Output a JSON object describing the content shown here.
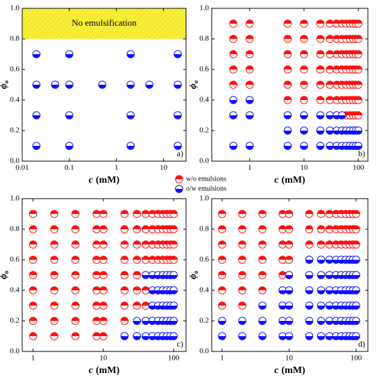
{
  "chart_data": [
    {
      "type": "scatter",
      "log_x": true,
      "xlim": [
        0.01,
        30
      ],
      "xticks": [
        0.01,
        0.1,
        1,
        10
      ],
      "ylim": [
        0,
        1
      ],
      "yticks": [
        {
          "value": 0,
          "label": "0.0"
        },
        0.2,
        0.4,
        0.6,
        0.8,
        {
          "value": 1,
          "label": "1.0"
        }
      ],
      "xlabel": "c",
      "xlabel_unit": "(mM)",
      "ylabel": "ϕ",
      "ylabel_sub": "o",
      "panel_label": "a)",
      "shaded_region": {
        "ymin": 0.8,
        "ymax": 1.0,
        "color": "#f7ef3a",
        "label": "No emulsification"
      },
      "series": [
        {
          "color": "#1010ff",
          "fill_half": "bottom",
          "x": [
            0.02,
            0.1,
            2,
            20,
            0.02,
            0.05,
            0.1,
            0.5,
            2,
            5,
            20,
            0.02,
            0.1,
            2,
            20,
            0.02,
            0.1,
            2,
            20
          ],
          "values": [
            0.7,
            0.7,
            0.7,
            0.7,
            0.5,
            0.5,
            0.5,
            0.5,
            0.5,
            0.5,
            0.5,
            0.3,
            0.3,
            0.3,
            0.3,
            0.1,
            0.1,
            0.1,
            0.1
          ]
        }
      ]
    },
    {
      "type": "scatter",
      "log_x": true,
      "xlim": [
        0.2,
        150
      ],
      "xticks": [
        1,
        10,
        100
      ],
      "ylim": [
        0,
        1
      ],
      "yticks": [
        {
          "value": 0,
          "label": "0.0"
        },
        0.2,
        0.4,
        0.6,
        0.8,
        {
          "value": 1,
          "label": "1.0"
        }
      ],
      "xlabel": "c",
      "xlabel_unit": "(mM)",
      "ylabel": "ϕ",
      "ylabel_sub": "o",
      "panel_label": "b)",
      "series": [
        {
          "name": "w/o emulsions",
          "color": "#ff1010",
          "fill_half": "top",
          "x": [
            0.5,
            1,
            5,
            10,
            20,
            30,
            40,
            50,
            60,
            70,
            80,
            90,
            100,
            0.5,
            1,
            5,
            10,
            20,
            30,
            40,
            50,
            60,
            70,
            80,
            90,
            100,
            0.5,
            1,
            5,
            10,
            20,
            30,
            40,
            50,
            60,
            70,
            80,
            90,
            100,
            0.5,
            1,
            5,
            10,
            20,
            30,
            40,
            50,
            60,
            70,
            80,
            90,
            100,
            0.5,
            1,
            5,
            10,
            20,
            30,
            40,
            50,
            60,
            70,
            80,
            90,
            100,
            5,
            10,
            20,
            30,
            40,
            50,
            60,
            70,
            80,
            90,
            100,
            60,
            70,
            80,
            90,
            100
          ],
          "values": [
            0.9,
            0.9,
            0.9,
            0.9,
            0.9,
            0.9,
            0.9,
            0.9,
            0.9,
            0.9,
            0.9,
            0.9,
            0.9,
            0.8,
            0.8,
            0.8,
            0.8,
            0.8,
            0.8,
            0.8,
            0.8,
            0.8,
            0.8,
            0.8,
            0.8,
            0.8,
            0.7,
            0.7,
            0.7,
            0.7,
            0.7,
            0.7,
            0.7,
            0.7,
            0.7,
            0.7,
            0.7,
            0.7,
            0.7,
            0.6,
            0.6,
            0.6,
            0.6,
            0.6,
            0.6,
            0.6,
            0.6,
            0.6,
            0.6,
            0.6,
            0.6,
            0.6,
            0.5,
            0.5,
            0.5,
            0.5,
            0.5,
            0.5,
            0.5,
            0.5,
            0.5,
            0.5,
            0.5,
            0.5,
            0.5,
            0.4,
            0.4,
            0.4,
            0.4,
            0.4,
            0.4,
            0.4,
            0.4,
            0.4,
            0.4,
            0.4,
            0.3,
            0.3,
            0.3,
            0.3,
            0.3
          ]
        },
        {
          "name": "o/w emulsions",
          "color": "#1010ff",
          "fill_half": "bottom",
          "x": [
            0.5,
            1,
            0.5,
            1,
            5,
            10,
            20,
            30,
            40,
            50,
            5,
            10,
            20,
            30,
            40,
            50,
            60,
            70,
            80,
            90,
            100,
            0.5,
            1,
            5,
            10,
            20,
            30,
            40,
            50,
            60,
            70,
            80,
            90,
            100
          ],
          "values": [
            0.4,
            0.4,
            0.3,
            0.3,
            0.3,
            0.3,
            0.3,
            0.3,
            0.3,
            0.3,
            0.2,
            0.2,
            0.2,
            0.2,
            0.2,
            0.2,
            0.2,
            0.2,
            0.2,
            0.2,
            0.2,
            0.1,
            0.1,
            0.1,
            0.1,
            0.1,
            0.1,
            0.1,
            0.1,
            0.1,
            0.1,
            0.1,
            0.1,
            0.1
          ]
        }
      ]
    },
    {
      "type": "scatter",
      "log_x": true,
      "xlim": [
        0.7,
        150
      ],
      "xticks": [
        1,
        10,
        100
      ],
      "ylim": [
        0,
        1
      ],
      "yticks": [
        {
          "value": 0,
          "label": "0.0"
        },
        0.2,
        0.4,
        0.6,
        0.8,
        {
          "value": 1,
          "label": "1.0"
        }
      ],
      "xlabel": "c",
      "xlabel_unit": "(mM)",
      "ylabel": "ϕ",
      "ylabel_sub": "o",
      "panel_label": "c)",
      "series": [
        {
          "color": "#ff1010",
          "fill_half": "top",
          "x": [
            1,
            2,
            4,
            8,
            10,
            20,
            30,
            40,
            50,
            60,
            70,
            80,
            90,
            100,
            1,
            2,
            4,
            8,
            10,
            20,
            30,
            40,
            50,
            60,
            70,
            80,
            90,
            100,
            1,
            2,
            4,
            8,
            10,
            20,
            30,
            40,
            50,
            60,
            70,
            80,
            90,
            100,
            1,
            2,
            4,
            8,
            10,
            20,
            30,
            40,
            50,
            60,
            70,
            80,
            90,
            100,
            1,
            2,
            4,
            8,
            10,
            20,
            30,
            1,
            2,
            4,
            8,
            10,
            20,
            30,
            40,
            1,
            2,
            4,
            8,
            10,
            20,
            30,
            40,
            1,
            2,
            4,
            8,
            10,
            20,
            1,
            2,
            4,
            8,
            10
          ],
          "values": [
            0.9,
            0.9,
            0.9,
            0.9,
            0.9,
            0.9,
            0.9,
            0.9,
            0.9,
            0.9,
            0.9,
            0.9,
            0.9,
            0.9,
            0.8,
            0.8,
            0.8,
            0.8,
            0.8,
            0.8,
            0.8,
            0.8,
            0.8,
            0.8,
            0.8,
            0.8,
            0.8,
            0.8,
            0.7,
            0.7,
            0.7,
            0.7,
            0.7,
            0.7,
            0.7,
            0.7,
            0.7,
            0.7,
            0.7,
            0.7,
            0.7,
            0.7,
            0.6,
            0.6,
            0.6,
            0.6,
            0.6,
            0.6,
            0.6,
            0.6,
            0.6,
            0.6,
            0.6,
            0.6,
            0.6,
            0.6,
            0.5,
            0.5,
            0.5,
            0.5,
            0.5,
            0.5,
            0.5,
            0.4,
            0.4,
            0.4,
            0.4,
            0.4,
            0.4,
            0.4,
            0.4,
            0.3,
            0.3,
            0.3,
            0.3,
            0.3,
            0.3,
            0.3,
            0.3,
            0.2,
            0.2,
            0.2,
            0.2,
            0.2,
            0.2,
            0.1,
            0.1,
            0.1,
            0.1,
            0.1
          ]
        },
        {
          "color": "#1010ff",
          "fill_half": "bottom",
          "x": [
            40,
            50,
            60,
            70,
            80,
            90,
            100,
            50,
            60,
            70,
            80,
            90,
            100,
            50,
            60,
            70,
            80,
            90,
            100,
            30,
            40,
            50,
            60,
            70,
            80,
            90,
            100,
            20,
            30,
            40,
            50,
            60,
            70,
            80,
            90,
            100
          ],
          "values": [
            0.5,
            0.5,
            0.5,
            0.5,
            0.5,
            0.5,
            0.5,
            0.4,
            0.4,
            0.4,
            0.4,
            0.4,
            0.4,
            0.3,
            0.3,
            0.3,
            0.3,
            0.3,
            0.3,
            0.2,
            0.2,
            0.2,
            0.2,
            0.2,
            0.2,
            0.2,
            0.2,
            0.1,
            0.1,
            0.1,
            0.1,
            0.1,
            0.1,
            0.1,
            0.1,
            0.1
          ]
        }
      ]
    },
    {
      "type": "scatter",
      "log_x": true,
      "xlim": [
        0.7,
        150
      ],
      "xticks": [
        1,
        10,
        100
      ],
      "ylim": [
        0,
        1
      ],
      "yticks": [
        {
          "value": 0,
          "label": "0.0"
        },
        0.2,
        0.4,
        0.6,
        0.8,
        {
          "value": 1,
          "label": "1.0"
        }
      ],
      "xlabel": "c",
      "xlabel_unit": "(mM)",
      "ylabel": "ϕ",
      "ylabel_sub": "o",
      "panel_label": "d)",
      "series": [
        {
          "color": "#ff1010",
          "fill_half": "top",
          "x": [
            1,
            2,
            4,
            8,
            10,
            20,
            30,
            40,
            50,
            60,
            70,
            80,
            90,
            100,
            1,
            2,
            4,
            8,
            10,
            20,
            30,
            40,
            50,
            60,
            70,
            80,
            90,
            100,
            1,
            2,
            4,
            8,
            10,
            20,
            30,
            40,
            50,
            60,
            70,
            80,
            90,
            100,
            1,
            2,
            4,
            8,
            10,
            1,
            2,
            4,
            8,
            1,
            2,
            4,
            1,
            2
          ],
          "values": [
            0.9,
            0.9,
            0.9,
            0.9,
            0.9,
            0.9,
            0.9,
            0.9,
            0.9,
            0.9,
            0.9,
            0.9,
            0.9,
            0.9,
            0.8,
            0.8,
            0.8,
            0.8,
            0.8,
            0.8,
            0.8,
            0.8,
            0.8,
            0.8,
            0.8,
            0.8,
            0.8,
            0.8,
            0.7,
            0.7,
            0.7,
            0.7,
            0.7,
            0.7,
            0.7,
            0.7,
            0.7,
            0.7,
            0.7,
            0.7,
            0.7,
            0.7,
            0.6,
            0.6,
            0.6,
            0.6,
            0.6,
            0.5,
            0.5,
            0.5,
            0.5,
            0.4,
            0.4,
            0.4,
            0.3,
            0.3
          ]
        },
        {
          "color": "#1010ff",
          "fill_half": "bottom",
          "x": [
            20,
            30,
            40,
            50,
            60,
            70,
            80,
            90,
            100,
            10,
            20,
            30,
            40,
            50,
            60,
            70,
            80,
            90,
            100,
            8,
            10,
            20,
            30,
            40,
            50,
            60,
            70,
            80,
            90,
            100,
            4,
            8,
            10,
            20,
            30,
            40,
            50,
            60,
            70,
            80,
            90,
            100,
            1,
            2,
            4,
            8,
            10,
            20,
            30,
            40,
            50,
            60,
            70,
            80,
            90,
            100,
            1,
            2,
            4,
            8,
            10,
            20,
            30,
            40,
            50,
            60,
            70,
            80,
            90,
            100
          ],
          "values": [
            0.6,
            0.6,
            0.6,
            0.6,
            0.6,
            0.6,
            0.6,
            0.6,
            0.6,
            0.5,
            0.5,
            0.5,
            0.5,
            0.5,
            0.5,
            0.5,
            0.5,
            0.5,
            0.5,
            0.4,
            0.4,
            0.4,
            0.4,
            0.4,
            0.4,
            0.4,
            0.4,
            0.4,
            0.4,
            0.4,
            0.3,
            0.3,
            0.3,
            0.3,
            0.3,
            0.3,
            0.3,
            0.3,
            0.3,
            0.3,
            0.3,
            0.3,
            0.2,
            0.2,
            0.2,
            0.2,
            0.2,
            0.2,
            0.2,
            0.2,
            0.2,
            0.2,
            0.2,
            0.2,
            0.2,
            0.2,
            0.1,
            0.1,
            0.1,
            0.1,
            0.1,
            0.1,
            0.1,
            0.1,
            0.1,
            0.1,
            0.1,
            0.1,
            0.1,
            0.1
          ]
        }
      ]
    }
  ]
}
